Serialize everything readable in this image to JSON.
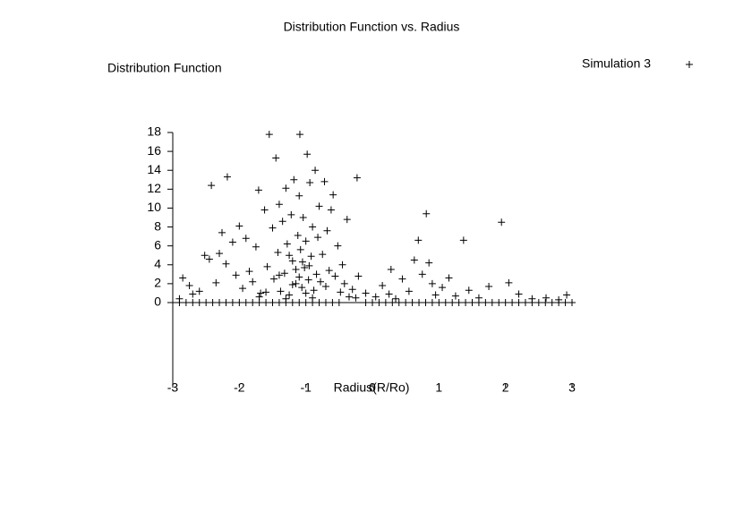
{
  "chart_data": {
    "type": "scatter",
    "title": "Distribution Function vs. Radius",
    "xlabel": "Radius(R/Ro)",
    "ylabel": "Distribution Function",
    "xlim": [
      -3,
      3
    ],
    "ylim": [
      -9,
      18
    ],
    "xticks": [
      -3,
      -2,
      -1,
      0,
      1,
      2,
      3
    ],
    "yticks": [
      0,
      2,
      4,
      6,
      8,
      10,
      12,
      14,
      16,
      18
    ],
    "legend": "top-right",
    "series": [
      {
        "name": "Simulation 3",
        "color": "#000000",
        "x": [
          -3.0,
          -2.9,
          -2.8,
          -2.7,
          -2.6,
          -2.5,
          -2.4,
          -2.3,
          -2.2,
          -2.1,
          -2.0,
          -1.9,
          -1.8,
          -1.7,
          -1.6,
          -1.5,
          -1.4,
          -1.3,
          -1.2,
          -1.1,
          -1.0,
          -0.9,
          -0.8,
          -0.7,
          -0.6,
          -0.5,
          -0.1,
          0.0,
          0.1,
          0.2,
          0.3,
          0.4,
          0.5,
          0.6,
          0.7,
          0.8,
          0.9,
          1.0,
          1.1,
          1.2,
          1.3,
          1.4,
          1.5,
          1.6,
          1.7,
          1.8,
          1.9,
          2.0,
          2.1,
          2.2,
          2.3,
          2.4,
          2.5,
          2.6,
          2.7,
          2.8,
          2.9,
          3.0,
          -2.9,
          -2.85,
          -2.75,
          -2.7,
          -2.6,
          -2.52,
          -2.45,
          -2.42,
          -2.35,
          -2.3,
          -2.26,
          -2.2,
          -2.18,
          -2.1,
          -2.05,
          -2.0,
          -1.95,
          -1.9,
          -1.85,
          -1.8,
          -1.75,
          -1.71,
          -1.68,
          -1.62,
          -1.58,
          -1.55,
          -1.5,
          -1.48,
          -1.45,
          -1.42,
          -1.4,
          -1.38,
          -1.35,
          -1.32,
          -1.3,
          -1.28,
          -1.25,
          -1.22,
          -1.2,
          -1.18,
          -1.15,
          -1.12,
          -1.1,
          -1.09,
          -1.08,
          -1.06,
          -1.04,
          -1.02,
          -1.0,
          -0.98,
          -0.96,
          -0.94,
          -0.92,
          -0.9,
          -0.88,
          -0.86,
          -0.84,
          -0.82,
          -0.8,
          -0.78,
          -0.75,
          -0.72,
          -0.7,
          -0.68,
          -0.65,
          -0.62,
          -0.59,
          -0.56,
          -0.52,
          -0.48,
          -0.45,
          -0.42,
          -0.38,
          -0.35,
          -0.3,
          -0.25,
          -0.23,
          -0.21,
          -0.1,
          0.05,
          0.15,
          0.25,
          0.28,
          0.35,
          0.45,
          0.55,
          0.63,
          0.69,
          0.75,
          0.81,
          0.85,
          0.9,
          0.95,
          1.05,
          1.15,
          1.25,
          1.37,
          1.45,
          1.6,
          1.75,
          1.94,
          2.05,
          2.2,
          2.4,
          2.61,
          2.8,
          2.92,
          -1.2,
          -1.15,
          -1.1,
          -1.05,
          -1.0,
          -0.95,
          -0.9,
          -1.3,
          -1.4,
          -1.6,
          -1.7,
          -1.25
        ],
        "y": [
          0,
          0,
          0,
          0,
          0,
          0,
          0,
          0,
          0,
          0,
          0,
          0,
          0,
          0,
          0,
          0,
          0,
          0,
          0,
          0,
          0,
          0,
          0,
          0,
          0,
          0,
          0,
          0,
          0,
          0,
          0,
          0,
          0,
          0,
          0,
          0,
          0,
          0,
          0,
          0,
          0,
          0,
          0,
          0,
          0,
          0,
          0,
          0,
          0,
          0,
          0,
          0,
          0,
          0,
          0,
          0,
          0,
          0,
          0.4,
          2.6,
          1.8,
          0.9,
          1.2,
          5.0,
          4.6,
          12.4,
          2.1,
          5.2,
          7.4,
          4.1,
          13.3,
          6.4,
          2.9,
          8.1,
          1.5,
          6.8,
          3.3,
          2.2,
          5.9,
          11.9,
          1.0,
          9.8,
          3.8,
          17.8,
          7.9,
          2.5,
          15.3,
          5.3,
          10.4,
          1.2,
          8.6,
          3.1,
          12.1,
          6.2,
          0.8,
          9.3,
          4.4,
          13.0,
          2.0,
          7.1,
          11.3,
          17.8,
          5.6,
          1.6,
          9.0,
          3.7,
          6.5,
          15.7,
          2.4,
          12.7,
          4.9,
          8.0,
          1.3,
          14.0,
          3.0,
          6.9,
          10.2,
          2.2,
          5.1,
          12.8,
          1.7,
          7.6,
          3.4,
          9.8,
          11.4,
          2.8,
          6.0,
          1.1,
          4.0,
          2.0,
          8.8,
          0.6,
          1.4,
          0.5,
          13.2,
          2.8,
          1.0,
          0.6,
          1.8,
          0.9,
          3.5,
          0.4,
          2.5,
          1.2,
          4.5,
          6.6,
          3.0,
          9.4,
          4.2,
          2.0,
          0.8,
          1.6,
          2.6,
          0.7,
          6.6,
          1.3,
          0.5,
          1.7,
          8.5,
          2.1,
          0.9,
          0.4,
          0.5,
          0.3,
          0.8,
          1.9,
          3.5,
          2.7,
          4.3,
          1.0,
          3.9,
          0.5,
          0.4,
          2.9,
          1.1,
          0.6,
          5.0
        ]
      }
    ]
  }
}
